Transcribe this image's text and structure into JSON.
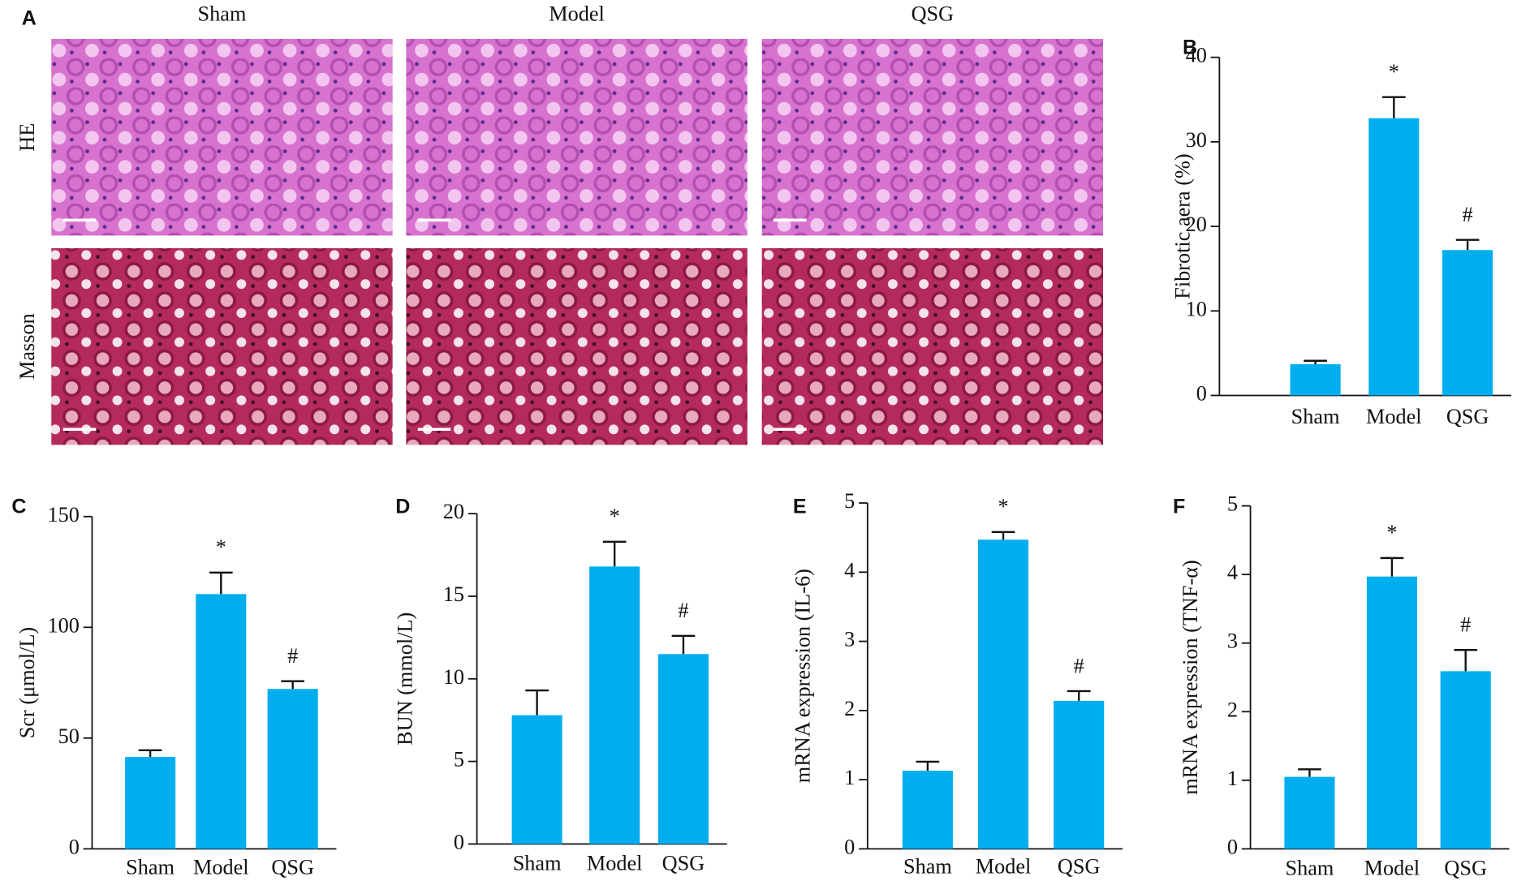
{
  "panel_a": {
    "label": "A",
    "columns": [
      "Sham",
      "Model",
      "QSG"
    ],
    "rows": [
      "HE",
      "Masson"
    ]
  },
  "chart_data": [
    {
      "type": "bar",
      "label": "B",
      "y_label": "Fibrotic aera (%)",
      "categories": [
        "Sham",
        "Model",
        "QSG"
      ],
      "values": [
        3.7,
        32.8,
        17.2
      ],
      "errors": [
        0.4,
        2.5,
        1.2
      ],
      "annotations": [
        null,
        "*",
        "#"
      ],
      "color": "#00aeef",
      "ylim": [
        0,
        40
      ],
      "yticks": [
        0,
        10,
        20,
        30,
        40
      ]
    },
    {
      "type": "bar",
      "label": "C",
      "y_label": "Scr (μmol/L)",
      "categories": [
        "Sham",
        "Model",
        "QSG"
      ],
      "values": [
        41.5,
        115,
        72.2
      ],
      "errors": [
        3,
        9.7,
        3.5
      ],
      "annotations": [
        null,
        "*",
        "#"
      ],
      "color": "#00aeef",
      "ylim": [
        0,
        150
      ],
      "yticks": [
        0,
        50,
        100,
        150
      ]
    },
    {
      "type": "bar",
      "label": "D",
      "y_label": "BUN (mmol/L)",
      "categories": [
        "Sham",
        "Model",
        "QSG"
      ],
      "values": [
        7.8,
        16.8,
        11.5
      ],
      "errors": [
        1.5,
        1.5,
        1.1
      ],
      "annotations": [
        null,
        "*",
        "#"
      ],
      "color": "#00aeef",
      "ylim": [
        0,
        20
      ],
      "yticks": [
        0,
        5,
        10,
        15,
        20
      ]
    },
    {
      "type": "bar",
      "label": "E",
      "y_label": "mRNA expression (IL-6)",
      "categories": [
        "Sham",
        "Model",
        "QSG"
      ],
      "values": [
        1.13,
        4.47,
        2.14
      ],
      "errors": [
        0.13,
        0.11,
        0.14
      ],
      "annotations": [
        null,
        "*",
        "#"
      ],
      "color": "#00aeef",
      "ylim": [
        0,
        5
      ],
      "yticks": [
        0,
        1,
        2,
        3,
        4,
        5
      ]
    },
    {
      "type": "bar",
      "label": "F",
      "y_label": "mRNA expression (TNF-α)",
      "categories": [
        "Sham",
        "Model",
        "QSG"
      ],
      "values": [
        1.05,
        3.97,
        2.59
      ],
      "errors": [
        0.11,
        0.27,
        0.31
      ],
      "annotations": [
        null,
        "*",
        "#"
      ],
      "color": "#00aeef",
      "ylim": [
        0,
        5
      ],
      "yticks": [
        0,
        1,
        2,
        3,
        4,
        5
      ]
    }
  ]
}
